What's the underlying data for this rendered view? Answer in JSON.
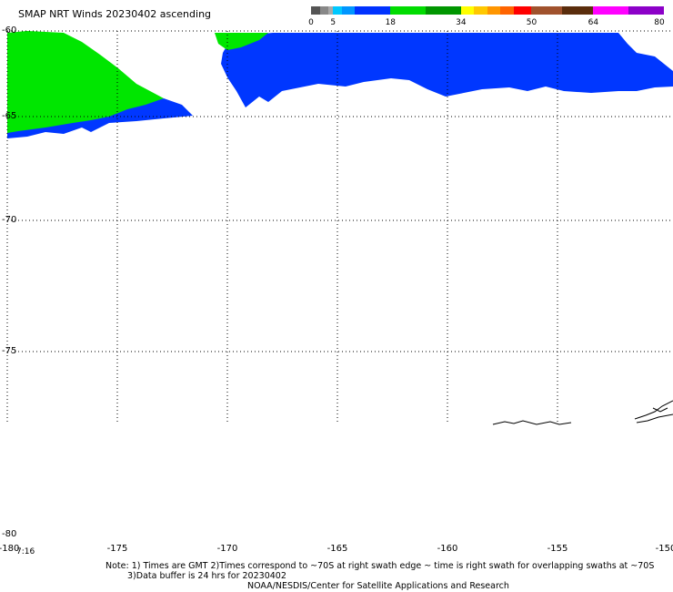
{
  "title": "SMAP NRT Winds 20230402 ascending",
  "colorbar": {
    "ticks": [
      "0",
      "5",
      "18",
      "34",
      "50",
      "64",
      "80"
    ],
    "segments": [
      {
        "from": 0,
        "to": 2,
        "color": "#555555"
      },
      {
        "from": 2,
        "to": 4,
        "color": "#888888"
      },
      {
        "from": 4,
        "to": 5,
        "color": "#aaaaaa"
      },
      {
        "from": 5,
        "to": 7,
        "color": "#00c8ff"
      },
      {
        "from": 7,
        "to": 10,
        "color": "#0096ff"
      },
      {
        "from": 10,
        "to": 18,
        "color": "#0032ff"
      },
      {
        "from": 18,
        "to": 26,
        "color": "#00dc00"
      },
      {
        "from": 26,
        "to": 34,
        "color": "#009600"
      },
      {
        "from": 34,
        "to": 37,
        "color": "#ffff00"
      },
      {
        "from": 37,
        "to": 40,
        "color": "#ffc800"
      },
      {
        "from": 40,
        "to": 43,
        "color": "#ff9600"
      },
      {
        "from": 43,
        "to": 46,
        "color": "#ff6400"
      },
      {
        "from": 46,
        "to": 50,
        "color": "#ff0000"
      },
      {
        "from": 50,
        "to": 57,
        "color": "#a0522d"
      },
      {
        "from": 57,
        "to": 64,
        "color": "#5a2d0c"
      },
      {
        "from": 64,
        "to": 72,
        "color": "#ff00ff"
      },
      {
        "from": 72,
        "to": 80,
        "color": "#8c00c8"
      }
    ]
  },
  "map": {
    "lat_labels": [
      "-60",
      "-65",
      "-70",
      "-75",
      "-80"
    ],
    "lon_labels": [
      "-180",
      "-175",
      "-170",
      "-165",
      "-160",
      "-155",
      "-150"
    ],
    "time_label": "7:16",
    "colors": {
      "strong": "#00e600",
      "moderate": "#0037ff",
      "land": "#000000"
    }
  },
  "notes": {
    "line1": "Note: 1) Times are GMT 2)Times correspond to ~70S at right swath edge ~ time is right swath for overlapping swaths at ~70S",
    "line2": "3)Data buffer is 24 hrs for 20230402",
    "line3": "NOAA/NESDIS/Center for Satellite Applications and Research"
  }
}
